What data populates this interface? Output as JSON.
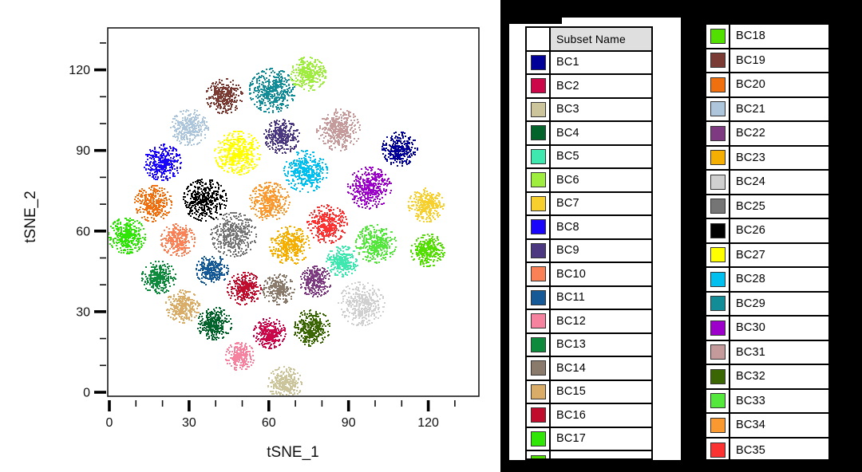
{
  "plot": {
    "xlabel": "tSNE_1",
    "ylabel": "tSNE_2",
    "x_major_ticks": [
      0,
      30,
      60,
      90,
      120
    ],
    "y_major_ticks": [
      0,
      30,
      60,
      90,
      120
    ],
    "minor_step": 10,
    "minor_max": 130
  },
  "chart_data": {
    "type": "scatter",
    "title": "",
    "xlabel": "tSNE_1",
    "ylabel": "tSNE_2",
    "xlim": [
      0,
      135
    ],
    "ylim": [
      0,
      133
    ],
    "grid": false,
    "legend_position": "separate right panel (subset tables)",
    "clusters": [
      {
        "subset": "BC19",
        "x": 43.0,
        "y": 110.5,
        "sd": 3.1,
        "n": 330
      },
      {
        "subset": "BC29",
        "x": 61.0,
        "y": 112.5,
        "sd": 3.9,
        "n": 420
      },
      {
        "subset": "BC6",
        "x": 74.5,
        "y": 118.7,
        "sd": 3.0,
        "n": 300
      },
      {
        "subset": "BC21",
        "x": 30.0,
        "y": 98.8,
        "sd": 3.2,
        "n": 320
      },
      {
        "subset": "BC31",
        "x": 86.0,
        "y": 98.0,
        "sd": 3.7,
        "n": 400
      },
      {
        "subset": "BC27",
        "x": 48.0,
        "y": 89.3,
        "sd": 3.9,
        "n": 450
      },
      {
        "subset": "BC8",
        "x": 19.8,
        "y": 85.8,
        "sd": 3.2,
        "n": 340
      },
      {
        "subset": "BC9",
        "x": 64.6,
        "y": 95.5,
        "sd": 3.0,
        "n": 310
      },
      {
        "subset": "BC1",
        "x": 109.0,
        "y": 90.8,
        "sd": 3.0,
        "n": 310
      },
      {
        "subset": "BC20",
        "x": 16.2,
        "y": 70.6,
        "sd": 3.2,
        "n": 330
      },
      {
        "subset": "BC26",
        "x": 35.7,
        "y": 71.8,
        "sd": 3.7,
        "n": 410
      },
      {
        "subset": "BC28",
        "x": 73.6,
        "y": 82.5,
        "sd": 3.7,
        "n": 390
      },
      {
        "subset": "BC30",
        "x": 97.6,
        "y": 76.3,
        "sd": 3.7,
        "n": 400
      },
      {
        "subset": "BC34",
        "x": 60.0,
        "y": 71.2,
        "sd": 3.4,
        "n": 360
      },
      {
        "subset": "BC7",
        "x": 118.9,
        "y": 70.0,
        "sd": 3.0,
        "n": 300
      },
      {
        "subset": "BC17",
        "x": 6.3,
        "y": 58.5,
        "sd": 3.2,
        "n": 350
      },
      {
        "subset": "BC10",
        "x": 25.5,
        "y": 57.0,
        "sd": 2.9,
        "n": 300
      },
      {
        "subset": "BC25",
        "x": 46.5,
        "y": 59.0,
        "sd": 3.9,
        "n": 410
      },
      {
        "subset": "BC35",
        "x": 81.7,
        "y": 62.9,
        "sd": 3.4,
        "n": 360
      },
      {
        "subset": "BC33",
        "x": 100.0,
        "y": 55.5,
        "sd": 3.4,
        "n": 360
      },
      {
        "subset": "BC18",
        "x": 119.5,
        "y": 53.1,
        "sd": 2.9,
        "n": 300
      },
      {
        "subset": "BC23",
        "x": 67.6,
        "y": 54.9,
        "sd": 3.4,
        "n": 370
      },
      {
        "subset": "BC5",
        "x": 87.4,
        "y": 49.0,
        "sd": 2.7,
        "n": 270
      },
      {
        "subset": "BC13",
        "x": 18.3,
        "y": 43.0,
        "sd": 2.9,
        "n": 300
      },
      {
        "subset": "BC11",
        "x": 38.4,
        "y": 45.7,
        "sd": 2.7,
        "n": 270
      },
      {
        "subset": "BC16",
        "x": 50.5,
        "y": 38.9,
        "sd": 2.9,
        "n": 300
      },
      {
        "subset": "BC14",
        "x": 63.4,
        "y": 38.6,
        "sd": 2.7,
        "n": 260
      },
      {
        "subset": "BC22",
        "x": 77.2,
        "y": 41.5,
        "sd": 2.7,
        "n": 270
      },
      {
        "subset": "BC24",
        "x": 94.6,
        "y": 33.2,
        "sd": 3.9,
        "n": 380
      },
      {
        "subset": "BC15",
        "x": 27.3,
        "y": 32.3,
        "sd": 2.9,
        "n": 300
      },
      {
        "subset": "BC4",
        "x": 39.3,
        "y": 25.8,
        "sd": 2.9,
        "n": 300
      },
      {
        "subset": "BC32",
        "x": 75.7,
        "y": 24.3,
        "sd": 3.2,
        "n": 330
      },
      {
        "subset": "BC2",
        "x": 60.0,
        "y": 22.3,
        "sd": 2.7,
        "n": 270
      },
      {
        "subset": "BC12",
        "x": 48.9,
        "y": 13.6,
        "sd": 2.5,
        "n": 260
      },
      {
        "subset": "BC3",
        "x": 65.8,
        "y": 3.6,
        "sd": 2.9,
        "n": 300
      }
    ]
  },
  "legend": {
    "header": "Subset Name",
    "header_bg": "#DFDFDF",
    "panel_bg": "#000000",
    "subsets": [
      {
        "name": "BC1",
        "color": "#000099"
      },
      {
        "name": "BC2",
        "color": "#CB0649"
      },
      {
        "name": "BC3",
        "color": "#CCC49A"
      },
      {
        "name": "BC4",
        "color": "#02632B"
      },
      {
        "name": "BC5",
        "color": "#3FE8AE"
      },
      {
        "name": "BC6",
        "color": "#9FED3E"
      },
      {
        "name": "BC7",
        "color": "#F7D02E"
      },
      {
        "name": "BC8",
        "color": "#1A06FA"
      },
      {
        "name": "BC9",
        "color": "#4C3880"
      },
      {
        "name": "BC10",
        "color": "#FA8055"
      },
      {
        "name": "BC11",
        "color": "#155A96"
      },
      {
        "name": "BC12",
        "color": "#F583A0"
      },
      {
        "name": "BC13",
        "color": "#0E8A3C"
      },
      {
        "name": "BC14",
        "color": "#8A7A6B"
      },
      {
        "name": "BC15",
        "color": "#D9AC67"
      },
      {
        "name": "BC16",
        "color": "#C00D2E"
      },
      {
        "name": "BC17",
        "color": "#2FE607"
      },
      {
        "name": "BC18",
        "color": "#52E000"
      },
      {
        "name": "BC19",
        "color": "#7B3B35"
      },
      {
        "name": "BC20",
        "color": "#F07010"
      },
      {
        "name": "BC21",
        "color": "#AEC6DC"
      },
      {
        "name": "BC22",
        "color": "#7E3A80"
      },
      {
        "name": "BC23",
        "color": "#F5AE02"
      },
      {
        "name": "BC24",
        "color": "#D0D0D0"
      },
      {
        "name": "BC25",
        "color": "#757575"
      },
      {
        "name": "BC26",
        "color": "#000000"
      },
      {
        "name": "BC27",
        "color": "#FFFF00"
      },
      {
        "name": "BC28",
        "color": "#00C0F0"
      },
      {
        "name": "BC29",
        "color": "#128C96"
      },
      {
        "name": "BC30",
        "color": "#9E00CC"
      },
      {
        "name": "BC31",
        "color": "#C49A9A"
      },
      {
        "name": "BC32",
        "color": "#3A6604"
      },
      {
        "name": "BC33",
        "color": "#55E83C"
      },
      {
        "name": "BC34",
        "color": "#F9992F"
      },
      {
        "name": "BC35",
        "color": "#FA3232"
      }
    ]
  }
}
